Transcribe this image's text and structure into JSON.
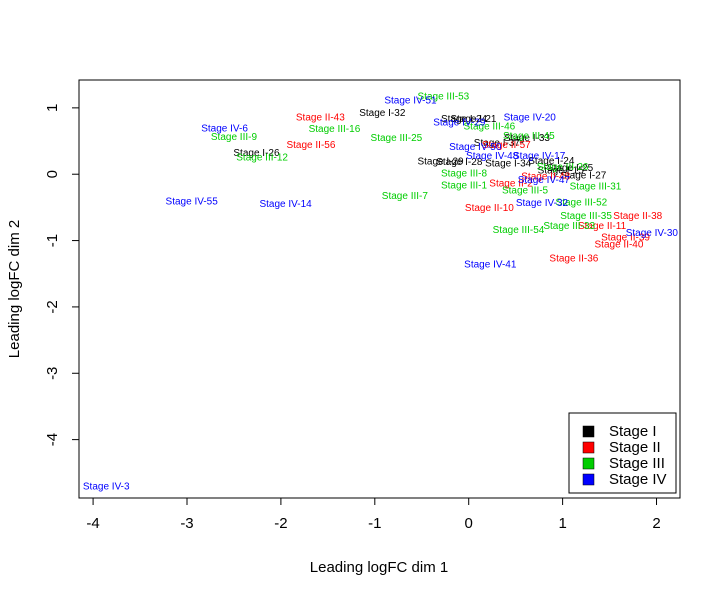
{
  "chart_data": {
    "type": "scatter",
    "title": "",
    "xlabel": "Leading logFC dim 1",
    "ylabel": "Leading logFC dim 2",
    "xlim": [
      -4.15,
      2.25
    ],
    "ylim": [
      -4.88,
      1.42
    ],
    "xticks": [
      -4,
      -3,
      -2,
      -1,
      0,
      1,
      2
    ],
    "yticks": [
      -4,
      -3,
      -2,
      -1,
      0,
      1
    ],
    "grid": false,
    "legend": {
      "placement": "bottom-right",
      "entries": [
        {
          "label": "Stage I",
          "color": "#000000"
        },
        {
          "label": "Stage II",
          "color": "#ff0000"
        },
        {
          "label": "Stage III",
          "color": "#00cd00"
        },
        {
          "label": "Stage IV",
          "color": "#0000ff"
        }
      ]
    },
    "series": [
      {
        "name": "Stage I",
        "color": "#000000",
        "points": [
          {
            "label": "Stage I-32",
            "x": -0.92,
            "y": 0.93
          },
          {
            "label": "Stage I-24",
            "x": -0.05,
            "y": 0.84
          },
          {
            "label": "Stage I-21",
            "x": 0.05,
            "y": 0.84
          },
          {
            "label": "Stage I-26",
            "x": -2.26,
            "y": 0.33
          },
          {
            "label": "Stage I-33",
            "x": 0.62,
            "y": 0.55
          },
          {
            "label": "Stage I-37",
            "x": 0.3,
            "y": 0.48
          },
          {
            "label": "Stage I-29",
            "x": -0.3,
            "y": 0.2
          },
          {
            "label": "Stage I-28",
            "x": -0.1,
            "y": 0.19
          },
          {
            "label": "Stage I-34",
            "x": 0.42,
            "y": 0.17
          },
          {
            "label": "Stage I-24",
            "x": 0.88,
            "y": 0.21
          },
          {
            "label": "Stage I-25",
            "x": 1.08,
            "y": 0.1
          },
          {
            "label": "Stage I-27",
            "x": 1.22,
            "y": -0.01
          },
          {
            "label": "Stage I-15",
            "x": 0.98,
            "y": 0.06
          }
        ]
      },
      {
        "name": "Stage II",
        "color": "#ff0000",
        "points": [
          {
            "label": "Stage II-43",
            "x": -1.58,
            "y": 0.86
          },
          {
            "label": "Stage II-56",
            "x": -1.68,
            "y": 0.45
          },
          {
            "label": "Stage II-57",
            "x": 0.4,
            "y": 0.45
          },
          {
            "label": "Stage II-48",
            "x": 0.82,
            "y": -0.03
          },
          {
            "label": "Stage II-2",
            "x": 0.45,
            "y": -0.13
          },
          {
            "label": "Stage II-10",
            "x": 0.22,
            "y": -0.5
          },
          {
            "label": "Stage II-11",
            "x": 1.42,
            "y": -0.77
          },
          {
            "label": "Stage II-38",
            "x": 1.8,
            "y": -0.62
          },
          {
            "label": "Stage II-39",
            "x": 1.67,
            "y": -0.95
          },
          {
            "label": "Stage II-40",
            "x": 1.6,
            "y": -1.05
          },
          {
            "label": "Stage II-36",
            "x": 1.12,
            "y": -1.26
          }
        ]
      },
      {
        "name": "Stage III",
        "color": "#00cd00",
        "points": [
          {
            "label": "Stage III-53",
            "x": -0.27,
            "y": 1.18
          },
          {
            "label": "Stage III-46",
            "x": 0.22,
            "y": 0.73
          },
          {
            "label": "Stage III-45",
            "x": 0.64,
            "y": 0.58
          },
          {
            "label": "Stage III-9",
            "x": -2.5,
            "y": 0.57
          },
          {
            "label": "Stage III-16",
            "x": -1.43,
            "y": 0.69
          },
          {
            "label": "Stage III-25",
            "x": -0.77,
            "y": 0.55
          },
          {
            "label": "Stage III-12",
            "x": -2.2,
            "y": 0.26
          },
          {
            "label": "Stage III-26",
            "x": 1.0,
            "y": 0.12
          },
          {
            "label": "Stage III-8",
            "x": -0.05,
            "y": 0.02
          },
          {
            "label": "Stage III-1",
            "x": -0.05,
            "y": -0.16
          },
          {
            "label": "Stage III-5",
            "x": 0.6,
            "y": -0.24
          },
          {
            "label": "Stage III-7",
            "x": -0.68,
            "y": -0.32
          },
          {
            "label": "Stage III-31",
            "x": 1.35,
            "y": -0.18
          },
          {
            "label": "Stage III-52",
            "x": 1.2,
            "y": -0.42
          },
          {
            "label": "Stage III-35",
            "x": 1.25,
            "y": -0.62
          },
          {
            "label": "Stage III-33",
            "x": 1.07,
            "y": -0.77
          },
          {
            "label": "Stage III-54",
            "x": 0.53,
            "y": -0.83
          }
        ]
      },
      {
        "name": "Stage IV",
        "color": "#0000ff",
        "points": [
          {
            "label": "Stage IV-51",
            "x": -0.62,
            "y": 1.12
          },
          {
            "label": "Stage IV-29",
            "x": -0.1,
            "y": 0.79
          },
          {
            "label": "Stage IV-20",
            "x": 0.65,
            "y": 0.86
          },
          {
            "label": "Stage IV-6",
            "x": -2.6,
            "y": 0.7
          },
          {
            "label": "Stage IV-50",
            "x": 0.07,
            "y": 0.42
          },
          {
            "label": "Stage IV-48",
            "x": 0.25,
            "y": 0.28
          },
          {
            "label": "Stage IV-17",
            "x": 0.75,
            "y": 0.28
          },
          {
            "label": "Stage IV-47",
            "x": 0.8,
            "y": -0.08
          },
          {
            "label": "Stage IV-55",
            "x": -2.95,
            "y": -0.4
          },
          {
            "label": "Stage IV-14",
            "x": -1.95,
            "y": -0.44
          },
          {
            "label": "Stage IV-32",
            "x": 0.78,
            "y": -0.43
          },
          {
            "label": "Stage IV-30",
            "x": 1.95,
            "y": -0.88
          },
          {
            "label": "Stage IV-41",
            "x": 0.23,
            "y": -1.35
          },
          {
            "label": "Stage IV-3",
            "x": -3.86,
            "y": -4.7
          }
        ]
      }
    ]
  }
}
